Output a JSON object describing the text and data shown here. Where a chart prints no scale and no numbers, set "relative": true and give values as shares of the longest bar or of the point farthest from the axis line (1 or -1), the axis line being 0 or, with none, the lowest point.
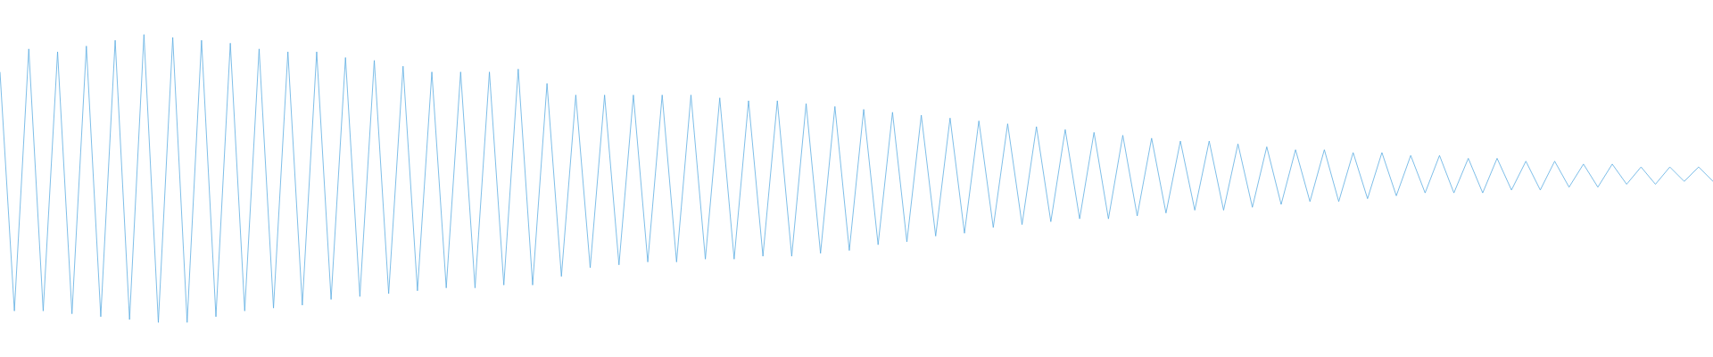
{
  "chart_data": {
    "type": "line",
    "relative": true,
    "color": "#5dade2",
    "categories": [
      null,
      null,
      null,
      null,
      null,
      null,
      null,
      null,
      null,
      null,
      null,
      null,
      null,
      null,
      null,
      null,
      null,
      null,
      null,
      null,
      null,
      null,
      null,
      null,
      null,
      null,
      null,
      null,
      null,
      null,
      null,
      null,
      null,
      null,
      null,
      null,
      null,
      null,
      null,
      null,
      null,
      null,
      null,
      null,
      null,
      null,
      null,
      null,
      null,
      null,
      null,
      null,
      null,
      null,
      null,
      null,
      null,
      null,
      null,
      null,
      null,
      null,
      null,
      null,
      null,
      null,
      null,
      null,
      null,
      null,
      null,
      null,
      null,
      null,
      null,
      null,
      null,
      null,
      null,
      null,
      null,
      null,
      null,
      null,
      null,
      null,
      null,
      null,
      null,
      null,
      null,
      null,
      null,
      null,
      null,
      null,
      null,
      null,
      null,
      null,
      null,
      null,
      null,
      null,
      null,
      null,
      null,
      null,
      null,
      null,
      null,
      null,
      null,
      null,
      null,
      null,
      null,
      null,
      null,
      null
    ],
    "values": [
      0.87,
      0.04,
      0.95,
      0.04,
      0.94,
      0.03,
      0.96,
      0.02,
      0.98,
      0.01,
      1.0,
      0.0,
      0.99,
      0.0,
      0.98,
      0.02,
      0.97,
      0.04,
      0.95,
      0.05,
      0.94,
      0.06,
      0.94,
      0.08,
      0.92,
      0.09,
      0.91,
      0.1,
      0.89,
      0.11,
      0.87,
      0.12,
      0.87,
      0.12,
      0.87,
      0.13,
      0.88,
      0.13,
      0.83,
      0.16,
      0.79,
      0.19,
      0.79,
      0.2,
      0.79,
      0.21,
      0.79,
      0.21,
      0.79,
      0.22,
      0.78,
      0.22,
      0.77,
      0.23,
      0.77,
      0.23,
      0.76,
      0.24,
      0.75,
      0.25,
      0.74,
      0.27,
      0.73,
      0.28,
      0.72,
      0.3,
      0.71,
      0.31,
      0.7,
      0.33,
      0.69,
      0.34,
      0.68,
      0.35,
      0.67,
      0.36,
      0.66,
      0.36,
      0.65,
      0.37,
      0.64,
      0.38,
      0.63,
      0.39,
      0.63,
      0.39,
      0.62,
      0.4,
      0.61,
      0.41,
      0.6,
      0.42,
      0.6,
      0.42,
      0.59,
      0.43,
      0.59,
      0.44,
      0.58,
      0.45,
      0.58,
      0.45,
      0.57,
      0.45,
      0.57,
      0.46,
      0.56,
      0.46,
      0.56,
      0.47,
      0.55,
      0.47,
      0.55,
      0.48,
      0.54,
      0.48,
      0.54,
      0.49,
      0.54,
      0.49
    ]
  }
}
